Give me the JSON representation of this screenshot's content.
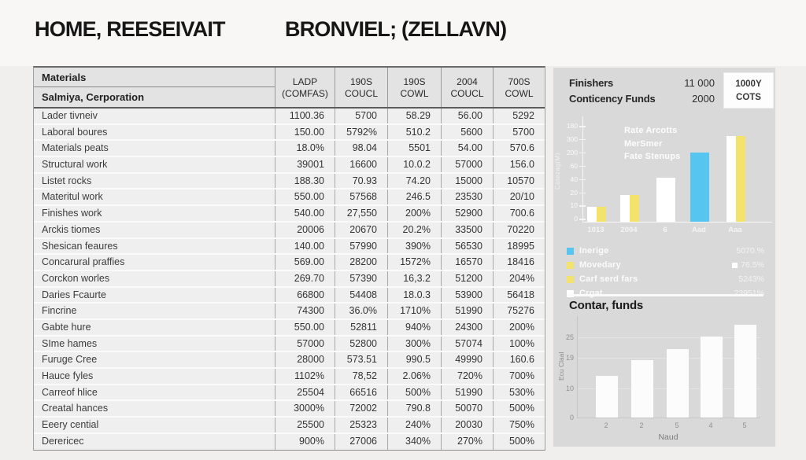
{
  "header": {
    "title_left": "HOME, REESEIVAIT",
    "title_right": "BRONVIEL; (ZELLAVN)"
  },
  "table": {
    "name_header_line1": "Materials",
    "name_header_line2": "Salmiya, Cerporation",
    "columns": [
      {
        "line1": "LADP",
        "line2": "(COMFAS)"
      },
      {
        "line1": "190S",
        "line2": "COUCL"
      },
      {
        "line1": "190S",
        "line2": "COWL"
      },
      {
        "line1": "2004",
        "line2": "COUCL"
      },
      {
        "line1": "700S",
        "line2": "COWL"
      }
    ],
    "rows": [
      {
        "name": "Lader tivneiv",
        "values": [
          "1100.36",
          "5700",
          "58.29",
          "56.00",
          "5292"
        ]
      },
      {
        "name": "Laboral boures",
        "values": [
          "150.00",
          "5792%",
          "510.2",
          "5600",
          "5700"
        ]
      },
      {
        "name": "Materials peats",
        "values": [
          "18.0%",
          "98.04",
          "5501",
          "54.00",
          "570.6"
        ]
      },
      {
        "name": "Structural work",
        "values": [
          "39001",
          "16600",
          "10.0.2",
          "57000",
          "156.0"
        ]
      },
      {
        "name": "Listet rocks",
        "values": [
          "188.30",
          "70.93",
          "74.20",
          "15000",
          "10570"
        ]
      },
      {
        "name": "Materitul work",
        "values": [
          "550.00",
          "57568",
          "246.5",
          "23530",
          "20/10"
        ]
      },
      {
        "name": "Finishes work",
        "values": [
          "540.00",
          "27,550",
          "200%",
          "52900",
          "700.6"
        ]
      },
      {
        "name": "Arckis tiomes",
        "values": [
          "20006",
          "20670",
          "20.2%",
          "33500",
          "70220"
        ]
      },
      {
        "name": "Shesican feaures",
        "values": [
          "140.00",
          "57990",
          "390%",
          "56530",
          "18995"
        ]
      },
      {
        "name": "Concarural praffies",
        "values": [
          "569.00",
          "28200",
          "1572%",
          "16570",
          "18416"
        ]
      },
      {
        "name": "Corckon worles",
        "values": [
          "269.70",
          "57390",
          "16,3.2",
          "51200",
          "204%"
        ]
      },
      {
        "name": "Daries Fcaurte",
        "values": [
          "66800",
          "54408",
          "18.0.3",
          "53900",
          "56418"
        ]
      },
      {
        "name": "Fincrine",
        "values": [
          "74300",
          "36.0%",
          "1710%",
          "51990",
          "75276"
        ]
      },
      {
        "name": "Gabte hure",
        "values": [
          "550.00",
          "52811",
          "940%",
          "24300",
          "200%"
        ]
      },
      {
        "name": "SIme hames",
        "values": [
          "57000",
          "52800",
          "300%",
          "57074",
          "100%"
        ]
      },
      {
        "name": "Furuge Cree",
        "values": [
          "28000",
          "573.51",
          "990.5",
          "49990",
          "160.6"
        ]
      },
      {
        "name": "Hauce fyles",
        "values": [
          "1102%",
          "78,52",
          "2.06%",
          "720%",
          "700%"
        ]
      },
      {
        "name": "Carreof hlice",
        "values": [
          "25504",
          "66516",
          "500%",
          "51990",
          "530%"
        ]
      },
      {
        "name": "Creatal hances",
        "values": [
          "3000%",
          "72002",
          "790.8",
          "50070",
          "500%"
        ]
      },
      {
        "name": "Eeery cential",
        "values": [
          "25500",
          "25323",
          "240%",
          "20030",
          "750%"
        ]
      },
      {
        "name": "Derericec",
        "values": [
          "900%",
          "27006",
          "340%",
          "270%",
          "500%"
        ]
      }
    ]
  },
  "panel": {
    "info": [
      {
        "label": "Finishers",
        "value": "11 000",
        "box": "1000Y"
      },
      {
        "label": "Conticency Funds",
        "value": "2000",
        "box": "COTS"
      }
    ],
    "colors": {
      "blue": "#56c5f0",
      "yellow": "#f3e26c",
      "white": "#ffffff"
    },
    "chart1": {
      "overlay_legend": [
        "Rate Arcotts",
        "MerSmer",
        "Fate Stenups"
      ],
      "y_ticks": [
        "180",
        "300",
        "200",
        "60",
        "40",
        "20",
        "10",
        "0"
      ],
      "y_title": "Cotezag(M)",
      "groups": [
        {
          "label": "1013",
          "bars": [
            {
              "color": "white",
              "pct": 14
            },
            {
              "color": "yellow",
              "pct": 14
            }
          ]
        },
        {
          "label": "2004",
          "bars": [
            {
              "color": "white",
              "pct": 25
            },
            {
              "color": "yellow",
              "pct": 25
            }
          ]
        },
        {
          "label": "6",
          "bars": [
            {
              "color": "white",
              "pct": 42,
              "wide": true
            }
          ]
        },
        {
          "label": "Aad",
          "bars": [
            {
              "color": "blue",
              "pct": 66,
              "wide": true
            }
          ]
        },
        {
          "label": "Aaa",
          "bars": [
            {
              "color": "white",
              "pct": 81
            },
            {
              "color": "yellow",
              "pct": 81
            }
          ]
        }
      ]
    },
    "legend": [
      {
        "chip": "blue",
        "label": "Inerige",
        "value": "5070.%",
        "value_chip": false
      },
      {
        "chip": "yellow",
        "label": "Movedary",
        "value": "76.5%",
        "value_chip": true
      },
      {
        "chip": "yellow",
        "label": "Carf serd fars",
        "value": "5243%",
        "value_chip": false
      },
      {
        "chip": "white",
        "label": "Crgat",
        "value": "23951%",
        "value_chip": false
      }
    ],
    "chart2": {
      "title": "Contar, funds",
      "y_title": "Ecu Claal",
      "x_title": "Naud",
      "y_ticks": [
        {
          "label": "25",
          "y": 27
        },
        {
          "label": "19",
          "y": 53
        },
        {
          "label": "10",
          "y": 92
        },
        {
          "label": "0",
          "y": 129
        }
      ],
      "bars": [
        {
          "label": "2",
          "h": 53
        },
        {
          "label": "2",
          "h": 73
        },
        {
          "label": "5",
          "h": 87
        },
        {
          "label": "4",
          "h": 103
        },
        {
          "label": "5",
          "h": 118
        }
      ]
    }
  },
  "chart_data": [
    {
      "type": "bar",
      "title": "",
      "categories": [
        "1013",
        "2004",
        "6",
        "Aad",
        "Aaa"
      ],
      "series": [
        {
          "name": "Rate Arcotts (white)",
          "values": [
            20,
            40,
            55,
            null,
            300
          ]
        },
        {
          "name": "MerSmer (yellow)",
          "values": [
            20,
            40,
            null,
            null,
            300
          ]
        },
        {
          "name": "Fate Stenups (blue)",
          "values": [
            null,
            null,
            null,
            200,
            null
          ]
        }
      ],
      "ylabel": "Cotezag(M)",
      "y_tick_labels": [
        "180",
        "300",
        "200",
        "60",
        "40",
        "20",
        "10",
        "0"
      ],
      "legend_position": "top-left-inside",
      "grid": false
    },
    {
      "type": "bar",
      "title": "Contar, funds",
      "categories": [
        "2",
        "2",
        "5",
        "4",
        "5"
      ],
      "values": [
        14,
        20,
        24,
        28,
        32
      ],
      "xlabel": "Naud",
      "ylabel": "Ecu Claal",
      "y_tick_labels": [
        "25",
        "19",
        "10",
        "0"
      ],
      "grid": true
    }
  ]
}
